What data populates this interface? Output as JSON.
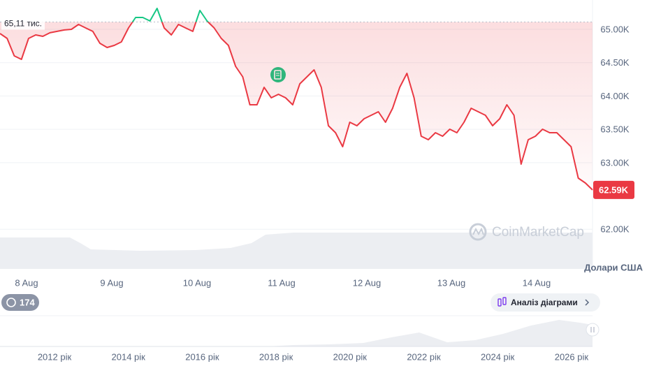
{
  "chart_data": {
    "type": "line",
    "ylim": [
      61405,
      65440
    ],
    "yticks": [
      {
        "value": 62000,
        "label": "62.00K"
      },
      {
        "value": 63000,
        "label": "63.00K"
      },
      {
        "value": 63500,
        "label": "63.50K"
      },
      {
        "value": 64000,
        "label": "64.00K"
      },
      {
        "value": 64500,
        "label": "64.50K"
      },
      {
        "value": 65000,
        "label": "65.00K"
      }
    ],
    "grid": true,
    "x_labels": [
      "8 Aug",
      "9 Aug",
      "10 Aug",
      "11 Aug",
      "12 Aug",
      "13 Aug",
      "14 Aug"
    ],
    "values": [
      64937,
      64864,
      64602,
      64549,
      64864,
      64916,
      64895,
      64948,
      64969,
      64990,
      65000,
      65073,
      65021,
      64969,
      64790,
      64727,
      64759,
      64811,
      65021,
      65178,
      65178,
      65126,
      65314,
      65021,
      64916,
      65073,
      65021,
      64969,
      65283,
      65126,
      65021,
      64864,
      64759,
      64444,
      64287,
      63868,
      63868,
      64130,
      63973,
      64025,
      63973,
      63868,
      64182,
      64287,
      64392,
      64130,
      63553,
      63449,
      63239,
      63606,
      63553,
      63658,
      63711,
      63763,
      63606,
      63816,
      64130,
      64340,
      63973,
      63396,
      63344,
      63449,
      63396,
      63501,
      63449,
      63606,
      63816,
      63763,
      63711,
      63553,
      63658,
      63868,
      63711,
      62977,
      63344,
      63396,
      63501,
      63449,
      63449,
      63344,
      63239,
      62767,
      62694,
      62590
    ],
    "color_above": "#16c784",
    "color_below": "#ea3943",
    "reference": {
      "value": 65110,
      "label": "65,11 тис."
    },
    "last_price": {
      "value": 62590,
      "label": "62.59K"
    },
    "currency_label": "Долари США",
    "watermark": "CoinMarketCap",
    "badge": "174",
    "button": "Аналіз діаграми",
    "range_labels": [
      "2012 рік",
      "2014 рік",
      "2016 рік",
      "2018 рік",
      "2020 рік",
      "2022 рік",
      "2024 рік",
      "2026 рік"
    ]
  }
}
